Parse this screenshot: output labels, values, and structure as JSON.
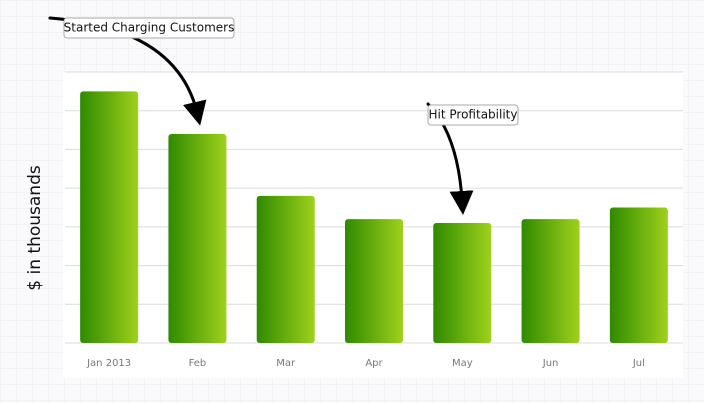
{
  "chart_data": {
    "type": "bar",
    "y_label": "$ in thousands",
    "categories": [
      "Jan 2013",
      "Feb",
      "Mar",
      "Apr",
      "May",
      "Jun",
      "Jul"
    ],
    "values": [
      6.5,
      5.4,
      3.8,
      3.2,
      3.1,
      3.2,
      3.5
    ],
    "colors": [
      "#2f8a00",
      "#9fd11c"
    ],
    "ylim": [
      0,
      7
    ],
    "yticks": [
      0,
      1,
      2,
      3,
      4,
      5,
      6,
      7
    ],
    "grid": true,
    "show_tick_labels": false,
    "annotations": [
      "Started Charging Customers",
      "Hit Profitability"
    ]
  }
}
